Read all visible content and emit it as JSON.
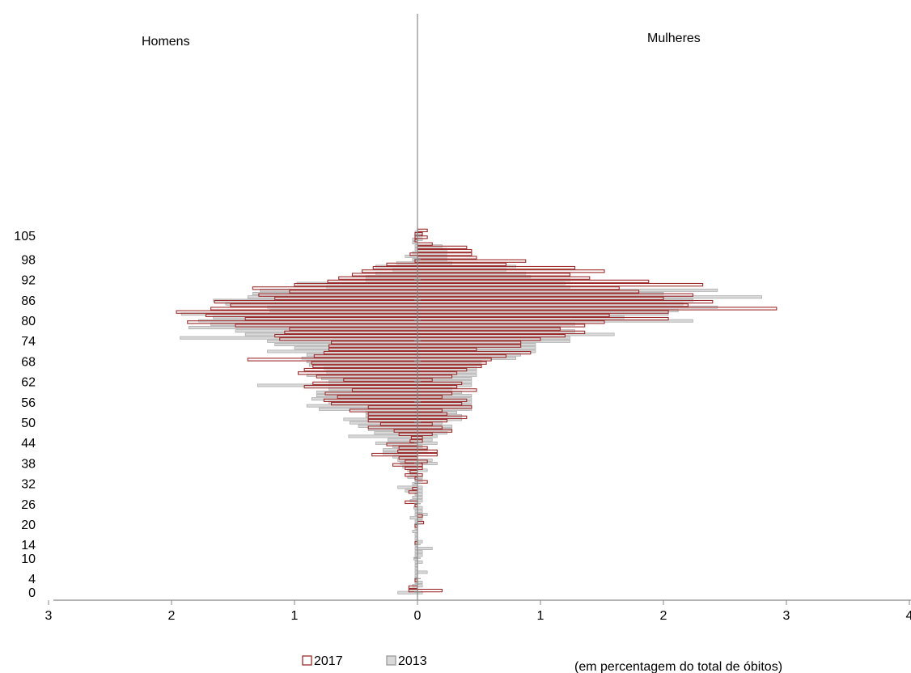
{
  "chart_data": {
    "type": "bar",
    "orientation": "horizontal-population-pyramid",
    "side_labels": {
      "left": "Homens",
      "right": "Mulheres"
    },
    "note": "(em percentagem do total de óbitos)",
    "y_ticks": [
      "0",
      "4",
      "10",
      "14",
      "20",
      "26",
      "32",
      "38",
      "44",
      "50",
      "56",
      "62",
      "68",
      "74",
      "80",
      "86",
      "92",
      "98",
      "105"
    ],
    "x_ticks": [
      "3",
      "2",
      "1",
      "0",
      "1",
      "2",
      "3",
      "4"
    ],
    "xlim": [
      -3,
      4
    ],
    "ylim": [
      0,
      105
    ],
    "legend_position": "bottom",
    "colors": {
      "2017": "#9c2b2b",
      "2013": "#bfbfbf"
    },
    "ages": [
      0,
      1,
      2,
      3,
      4,
      5,
      6,
      7,
      8,
      9,
      10,
      11,
      12,
      13,
      14,
      15,
      16,
      17,
      18,
      19,
      20,
      21,
      22,
      23,
      24,
      25,
      26,
      27,
      28,
      29,
      30,
      31,
      32,
      33,
      34,
      35,
      36,
      37,
      38,
      39,
      40,
      41,
      42,
      43,
      44,
      45,
      46,
      47,
      48,
      49,
      50,
      51,
      52,
      53,
      54,
      55,
      56,
      57,
      58,
      59,
      60,
      61,
      62,
      63,
      64,
      65,
      66,
      67,
      68,
      69,
      70,
      71,
      72,
      73,
      74,
      75,
      76,
      77,
      78,
      79,
      80,
      81,
      82,
      83,
      84,
      85,
      86,
      87,
      88,
      89,
      90,
      91,
      92,
      93,
      94,
      95,
      96,
      97,
      98,
      99,
      100,
      101,
      102,
      103,
      104,
      105,
      106
    ],
    "series": [
      {
        "name": "2017",
        "men": [
          0.07,
          0.07,
          0.0,
          0.02,
          0.0,
          0.0,
          0.0,
          0.0,
          0.0,
          0.0,
          0.0,
          0.0,
          0.0,
          0.0,
          0.02,
          0.0,
          0.0,
          0.0,
          0.0,
          0.02,
          0.0,
          0.0,
          0.0,
          0.0,
          0.0,
          0.02,
          0.1,
          0.0,
          0.0,
          0.07,
          0.04,
          0.0,
          0.0,
          0.02,
          0.1,
          0.06,
          0.1,
          0.2,
          0.1,
          0.15,
          0.37,
          0.16,
          0.15,
          0.25,
          0.06,
          0.05,
          0.15,
          0.19,
          0.4,
          0.3,
          0.4,
          0.4,
          0.4,
          0.55,
          0.4,
          0.7,
          0.76,
          0.65,
          0.75,
          0.53,
          0.92,
          0.85,
          0.6,
          0.82,
          0.97,
          0.92,
          0.85,
          0.86,
          1.38,
          0.84,
          0.76,
          0.72,
          0.72,
          0.7,
          1.12,
          1.16,
          1.08,
          1.04,
          1.48,
          1.87,
          1.4,
          1.72,
          1.96,
          1.68,
          1.52,
          1.65,
          1.16,
          1.29,
          1.04,
          1.34,
          1.0,
          0.73,
          0.64,
          0.53,
          0.45,
          0.36,
          0.25,
          0.02,
          0.0,
          0.06,
          0.0,
          0.0,
          0.0,
          0.02,
          0.02,
          0.02,
          0.0
        ],
        "women": [
          0.2,
          0.0,
          0.0,
          0.0,
          0.0,
          0.0,
          0.0,
          0.0,
          0.0,
          0.0,
          0.0,
          0.0,
          0.0,
          0.0,
          0.0,
          0.0,
          0.0,
          0.0,
          0.0,
          0.0,
          0.05,
          0.0,
          0.04,
          0.0,
          0.0,
          0.0,
          0.0,
          0.0,
          0.0,
          0.0,
          0.0,
          0.0,
          0.08,
          0.0,
          0.04,
          0.0,
          0.04,
          0.04,
          0.08,
          0.0,
          0.16,
          0.16,
          0.08,
          0.0,
          0.04,
          0.04,
          0.12,
          0.28,
          0.2,
          0.12,
          0.24,
          0.4,
          0.24,
          0.2,
          0.44,
          0.36,
          0.4,
          0.2,
          0.28,
          0.48,
          0.32,
          0.36,
          0.12,
          0.28,
          0.32,
          0.4,
          0.52,
          0.56,
          0.6,
          0.72,
          0.92,
          0.48,
          0.84,
          0.84,
          1.0,
          1.2,
          1.36,
          1.16,
          1.36,
          1.52,
          2.04,
          1.56,
          2.04,
          2.92,
          2.2,
          2.4,
          2.0,
          2.24,
          1.8,
          1.64,
          2.32,
          1.88,
          1.4,
          1.24,
          1.52,
          1.28,
          0.72,
          0.88,
          0.48,
          0.44,
          0.44,
          0.4,
          0.12,
          0.0,
          0.08,
          0.04,
          0.08
        ]
      },
      {
        "name": "2013",
        "men": [
          0.16,
          0.06,
          0.04,
          0.02,
          0.02,
          0.02,
          0.02,
          0.02,
          0.02,
          0.02,
          0.03,
          0.02,
          0.02,
          0.02,
          0.02,
          0.02,
          0.02,
          0.02,
          0.04,
          0.02,
          0.02,
          0.02,
          0.06,
          0.02,
          0.02,
          0.03,
          0.02,
          0.06,
          0.04,
          0.02,
          0.1,
          0.16,
          0.04,
          0.02,
          0.08,
          0.06,
          0.08,
          0.12,
          0.14,
          0.16,
          0.2,
          0.28,
          0.28,
          0.2,
          0.34,
          0.24,
          0.56,
          0.35,
          0.4,
          0.48,
          0.55,
          0.6,
          0.42,
          0.42,
          0.8,
          0.9,
          0.72,
          0.86,
          0.82,
          0.82,
          0.72,
          1.3,
          0.72,
          0.78,
          0.9,
          0.74,
          0.76,
          0.88,
          0.9,
          0.94,
          0.9,
          1.22,
          1.0,
          1.16,
          1.22,
          1.93,
          1.4,
          1.48,
          1.86,
          1.68,
          1.78,
          1.66,
          1.92,
          1.2,
          1.22,
          1.56,
          1.66,
          1.38,
          1.34,
          1.28,
          0.74,
          0.98,
          0.42,
          0.42,
          0.34,
          0.2,
          0.34,
          0.17,
          0.04,
          0.1,
          0.04,
          0.02,
          0.02,
          0.04,
          0.04,
          0.02,
          0.02
        ],
        "women": [
          0.04,
          0.0,
          0.04,
          0.04,
          0.0,
          0.0,
          0.08,
          0.0,
          0.0,
          0.04,
          0.0,
          0.04,
          0.04,
          0.12,
          0.0,
          0.04,
          0.0,
          0.0,
          0.0,
          0.0,
          0.0,
          0.04,
          0.04,
          0.08,
          0.04,
          0.04,
          0.0,
          0.04,
          0.04,
          0.04,
          0.04,
          0.04,
          0.0,
          0.04,
          0.04,
          0.0,
          0.08,
          0.0,
          0.16,
          0.12,
          0.0,
          0.0,
          0.08,
          0.04,
          0.16,
          0.12,
          0.16,
          0.24,
          0.28,
          0.28,
          0.2,
          0.36,
          0.36,
          0.32,
          0.44,
          0.44,
          0.44,
          0.44,
          0.44,
          0.36,
          0.28,
          0.44,
          0.44,
          0.44,
          0.48,
          0.48,
          0.48,
          0.52,
          0.52,
          0.8,
          0.84,
          0.96,
          0.96,
          0.96,
          1.24,
          1.24,
          1.6,
          1.28,
          1.16,
          1.28,
          2.24,
          1.68,
          2.04,
          2.12,
          2.44,
          2.16,
          2.24,
          2.8,
          2.0,
          2.44,
          1.24,
          1.2,
          1.24,
          0.92,
          0.88,
          0.72,
          0.8,
          0.28,
          0.24,
          0.24,
          0.24,
          0.24,
          0.2,
          0.0,
          0.04,
          0.04,
          0.04
        ]
      }
    ]
  }
}
